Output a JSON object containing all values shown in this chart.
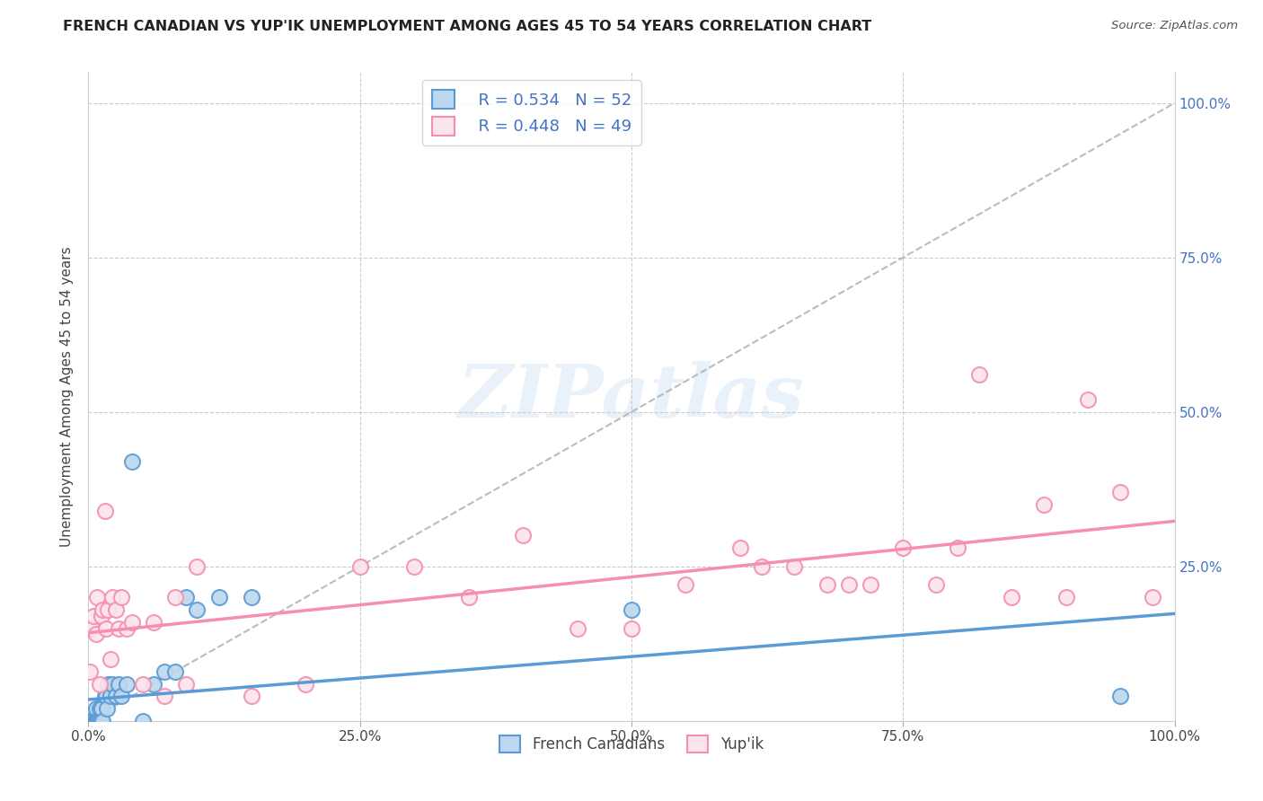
{
  "title": "FRENCH CANADIAN VS YUP'IK UNEMPLOYMENT AMONG AGES 45 TO 54 YEARS CORRELATION CHART",
  "source": "Source: ZipAtlas.com",
  "ylabel": "Unemployment Among Ages 45 to 54 years",
  "watermark": "ZIPatlas",
  "french_color": "#5b9bd5",
  "french_fill": "#bdd7ee",
  "yupik_color": "#f48fb1",
  "yupik_fill": "#fce4ec",
  "legend_R_french": "R = 0.534",
  "legend_N_french": "N = 52",
  "legend_R_yupik": "R = 0.448",
  "legend_N_yupik": "N = 49",
  "french_x": [
    0.001,
    0.001,
    0.001,
    0.002,
    0.002,
    0.002,
    0.002,
    0.003,
    0.003,
    0.003,
    0.004,
    0.004,
    0.004,
    0.005,
    0.005,
    0.005,
    0.006,
    0.006,
    0.006,
    0.007,
    0.007,
    0.007,
    0.008,
    0.008,
    0.009,
    0.009,
    0.01,
    0.01,
    0.011,
    0.012,
    0.013,
    0.015,
    0.016,
    0.017,
    0.018,
    0.02,
    0.022,
    0.025,
    0.028,
    0.03,
    0.035,
    0.04,
    0.05,
    0.06,
    0.07,
    0.08,
    0.09,
    0.1,
    0.12,
    0.15,
    0.5,
    0.95
  ],
  "french_y": [
    0.0,
    0.0,
    0.0,
    0.0,
    0.0,
    0.0,
    0.0,
    0.0,
    0.0,
    0.0,
    0.0,
    0.0,
    0.0,
    0.0,
    0.0,
    0.0,
    0.0,
    0.0,
    0.0,
    0.0,
    0.0,
    0.02,
    0.0,
    0.0,
    0.0,
    0.0,
    0.0,
    0.02,
    0.0,
    0.02,
    0.0,
    0.04,
    0.04,
    0.02,
    0.06,
    0.04,
    0.06,
    0.04,
    0.06,
    0.04,
    0.06,
    0.42,
    0.0,
    0.06,
    0.08,
    0.08,
    0.2,
    0.18,
    0.2,
    0.2,
    0.18,
    0.04
  ],
  "yupik_x": [
    0.001,
    0.003,
    0.005,
    0.007,
    0.008,
    0.01,
    0.012,
    0.013,
    0.015,
    0.016,
    0.018,
    0.02,
    0.022,
    0.025,
    0.028,
    0.03,
    0.035,
    0.04,
    0.05,
    0.06,
    0.07,
    0.08,
    0.09,
    0.1,
    0.15,
    0.2,
    0.25,
    0.3,
    0.35,
    0.4,
    0.45,
    0.5,
    0.55,
    0.6,
    0.62,
    0.65,
    0.68,
    0.7,
    0.72,
    0.75,
    0.78,
    0.8,
    0.82,
    0.85,
    0.88,
    0.9,
    0.92,
    0.95,
    0.98
  ],
  "yupik_y": [
    0.08,
    0.15,
    0.17,
    0.14,
    0.2,
    0.06,
    0.17,
    0.18,
    0.34,
    0.15,
    0.18,
    0.1,
    0.2,
    0.18,
    0.15,
    0.2,
    0.15,
    0.16,
    0.06,
    0.16,
    0.04,
    0.2,
    0.06,
    0.25,
    0.04,
    0.06,
    0.25,
    0.25,
    0.2,
    0.3,
    0.15,
    0.15,
    0.22,
    0.28,
    0.25,
    0.25,
    0.22,
    0.22,
    0.22,
    0.28,
    0.22,
    0.28,
    0.56,
    0.2,
    0.35,
    0.2,
    0.52,
    0.37,
    0.2
  ],
  "diag_line_color": "#aaaaaa",
  "background_color": "#ffffff",
  "grid_color": "#cccccc",
  "x_ticks": [
    0.0,
    0.25,
    0.5,
    0.75,
    1.0
  ],
  "x_tick_labels": [
    "0.0%",
    "25.0%",
    "50.0%",
    "75.0%",
    "100.0%"
  ],
  "y_ticks": [
    0.0,
    0.25,
    0.5,
    0.75,
    1.0
  ],
  "right_y_tick_labels": [
    "",
    "25.0%",
    "50.0%",
    "75.0%",
    "100.0%"
  ]
}
